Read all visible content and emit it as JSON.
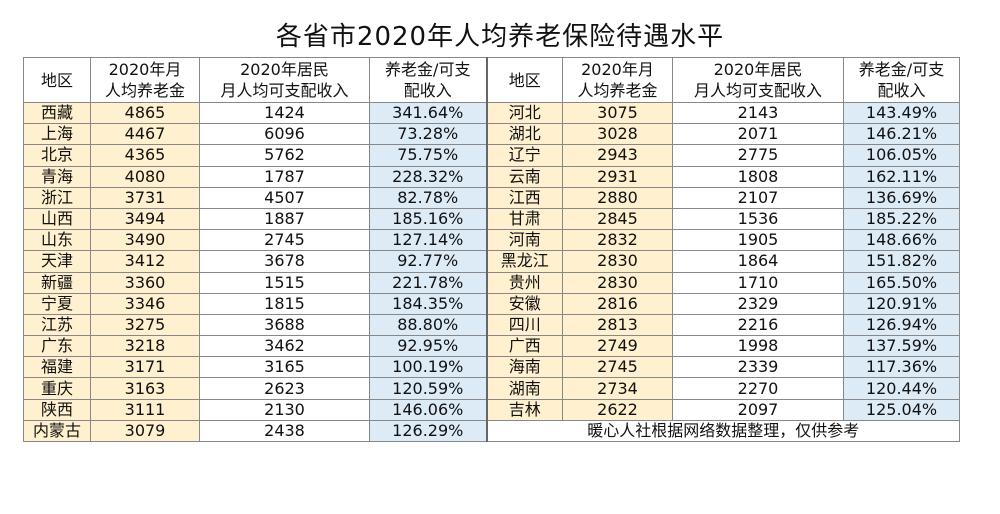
{
  "title": "各省市2020年人均养老保险待遇水平",
  "headers": {
    "region": "地区",
    "pension_l1": "2020年月",
    "pension_l2": "人均养老金",
    "income_l1": "2020年居民",
    "income_l2": "月人均可支配收入",
    "ratio_l1": "养老金/可支",
    "ratio_l2": "配收入"
  },
  "colors": {
    "region_bg": "#fff1cf",
    "pension_bg": "#fff1cf",
    "ratio_bg": "#ddebf7",
    "border": "#888888"
  },
  "left": [
    {
      "region": "西藏",
      "pension": "4865",
      "income": "1424",
      "ratio": "341.64%"
    },
    {
      "region": "上海",
      "pension": "4467",
      "income": "6096",
      "ratio": "73.28%"
    },
    {
      "region": "北京",
      "pension": "4365",
      "income": "5762",
      "ratio": "75.75%"
    },
    {
      "region": "青海",
      "pension": "4080",
      "income": "1787",
      "ratio": "228.32%"
    },
    {
      "region": "浙江",
      "pension": "3731",
      "income": "4507",
      "ratio": "82.78%"
    },
    {
      "region": "山西",
      "pension": "3494",
      "income": "1887",
      "ratio": "185.16%"
    },
    {
      "region": "山东",
      "pension": "3490",
      "income": "2745",
      "ratio": "127.14%"
    },
    {
      "region": "天津",
      "pension": "3412",
      "income": "3678",
      "ratio": "92.77%"
    },
    {
      "region": "新疆",
      "pension": "3360",
      "income": "1515",
      "ratio": "221.78%"
    },
    {
      "region": "宁夏",
      "pension": "3346",
      "income": "1815",
      "ratio": "184.35%"
    },
    {
      "region": "江苏",
      "pension": "3275",
      "income": "3688",
      "ratio": "88.80%"
    },
    {
      "region": "广东",
      "pension": "3218",
      "income": "3462",
      "ratio": "92.95%"
    },
    {
      "region": "福建",
      "pension": "3171",
      "income": "3165",
      "ratio": "100.19%"
    },
    {
      "region": "重庆",
      "pension": "3163",
      "income": "2623",
      "ratio": "120.59%"
    },
    {
      "region": "陕西",
      "pension": "3111",
      "income": "2130",
      "ratio": "146.06%"
    },
    {
      "region": "内蒙古",
      "pension": "3079",
      "income": "2438",
      "ratio": "126.29%"
    }
  ],
  "right": [
    {
      "region": "河北",
      "pension": "3075",
      "income": "2143",
      "ratio": "143.49%"
    },
    {
      "region": "湖北",
      "pension": "3028",
      "income": "2071",
      "ratio": "146.21%"
    },
    {
      "region": "辽宁",
      "pension": "2943",
      "income": "2775",
      "ratio": "106.05%"
    },
    {
      "region": "云南",
      "pension": "2931",
      "income": "1808",
      "ratio": "162.11%"
    },
    {
      "region": "江西",
      "pension": "2880",
      "income": "2107",
      "ratio": "136.69%"
    },
    {
      "region": "甘肃",
      "pension": "2845",
      "income": "1536",
      "ratio": "185.22%"
    },
    {
      "region": "河南",
      "pension": "2832",
      "income": "1905",
      "ratio": "148.66%"
    },
    {
      "region": "黑龙江",
      "pension": "2830",
      "income": "1864",
      "ratio": "151.82%"
    },
    {
      "region": "贵州",
      "pension": "2830",
      "income": "1710",
      "ratio": "165.50%"
    },
    {
      "region": "安徽",
      "pension": "2816",
      "income": "2329",
      "ratio": "120.91%"
    },
    {
      "region": "四川",
      "pension": "2813",
      "income": "2216",
      "ratio": "126.94%"
    },
    {
      "region": "广西",
      "pension": "2749",
      "income": "1998",
      "ratio": "137.59%"
    },
    {
      "region": "海南",
      "pension": "2745",
      "income": "2339",
      "ratio": "117.36%"
    },
    {
      "region": "湖南",
      "pension": "2734",
      "income": "2270",
      "ratio": "120.44%"
    },
    {
      "region": "吉林",
      "pension": "2622",
      "income": "2097",
      "ratio": "125.04%"
    }
  ],
  "footnote": "暖心人社根据网络数据整理，仅供参考"
}
